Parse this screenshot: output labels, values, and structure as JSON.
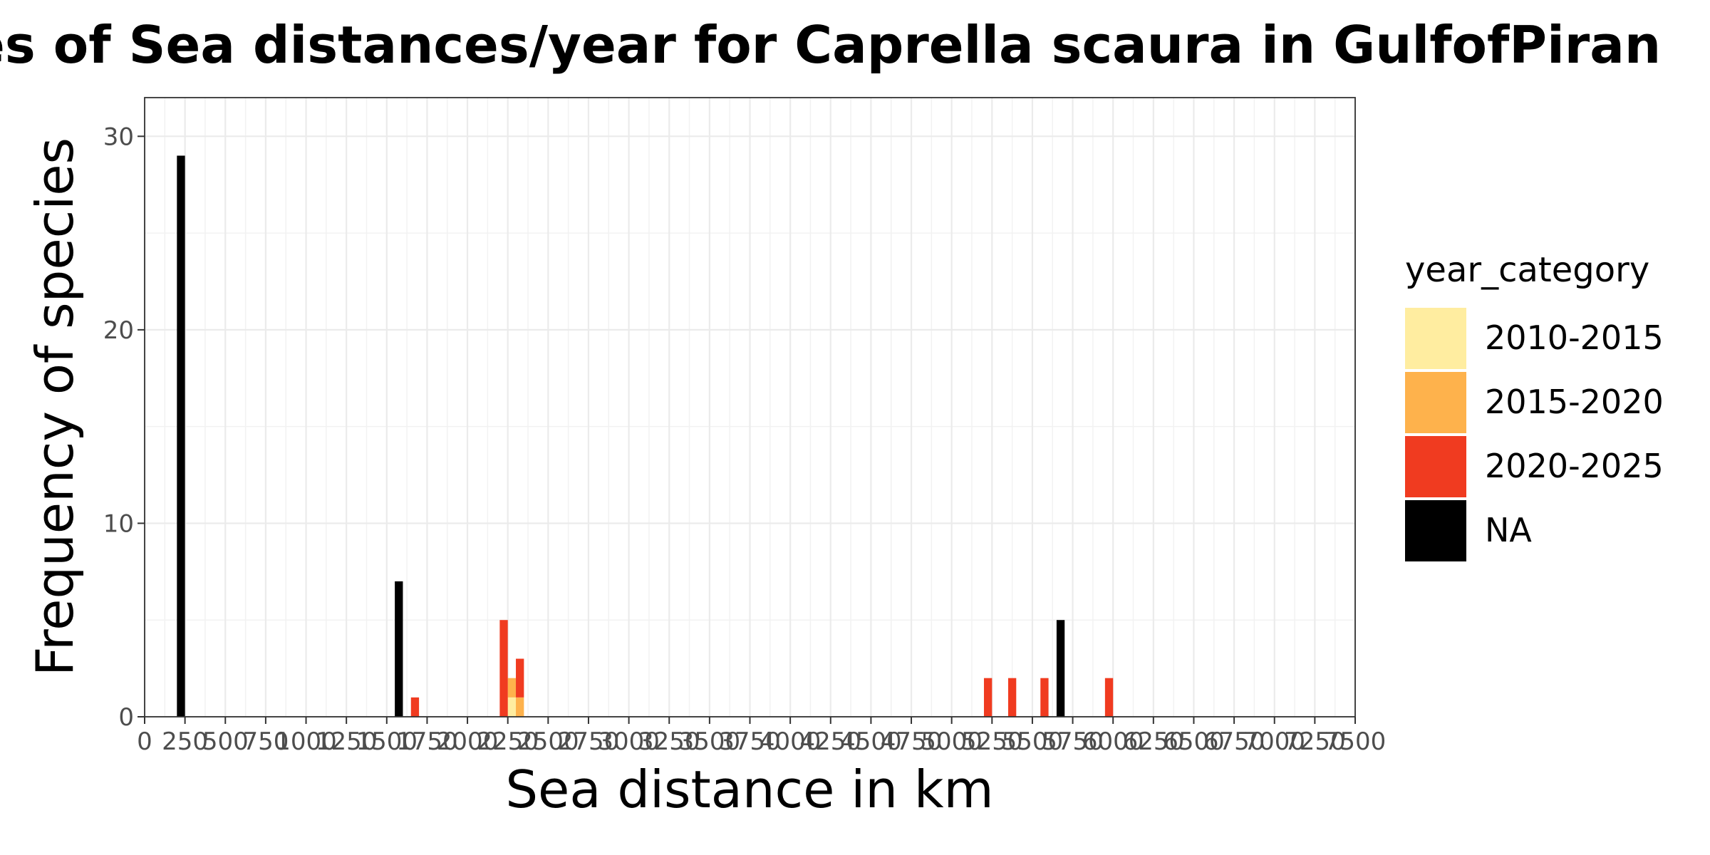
{
  "chart_data": {
    "type": "bar",
    "stacked": true,
    "title": "Frequencies of Sea distances/year for Caprella scaura in GulfofPiran",
    "xlabel": "Sea distance in km",
    "ylabel": "Frequency of species",
    "xlim": [
      0,
      7500
    ],
    "ylim": [
      0,
      32
    ],
    "bin_width": 50,
    "x_ticks": [
      0,
      250,
      500,
      750,
      1000,
      1250,
      1500,
      1750,
      2000,
      2250,
      2500,
      2750,
      3000,
      3250,
      3500,
      3750,
      4000,
      4250,
      4500,
      4750,
      5000,
      5250,
      5500,
      5750,
      6000,
      6250,
      6500,
      6750,
      7000,
      7250,
      7500
    ],
    "x_tick_labels": [
      "0",
      "250",
      "500",
      "750",
      "1000",
      "1250",
      "1500",
      "1750",
      "2000",
      "2250",
      "2500",
      "2750",
      "3000",
      "3250",
      "3500",
      "3750",
      "4000",
      "4250",
      "4500",
      "4750",
      "5000",
      "5250",
      "5500",
      "5750",
      "6000",
      "6250",
      "6500",
      "6750",
      "7000",
      "7250",
      "7500"
    ],
    "y_ticks": [
      0,
      10,
      20,
      30
    ],
    "y_tick_labels": [
      "0",
      "10",
      "20",
      "30"
    ],
    "grid": true,
    "legend": {
      "title": "year_category",
      "placement": "right",
      "entries": [
        {
          "name": "2010-2015",
          "color": "#FFEDA0"
        },
        {
          "name": "2015-2020",
          "color": "#FEB24C"
        },
        {
          "name": "2020-2025",
          "color": "#F03B20"
        },
        {
          "name": "NA",
          "color": "#000000"
        }
      ]
    },
    "series": [
      {
        "name": "2010-2015",
        "color": "#FFEDA0",
        "points": [
          {
            "x": 2275,
            "y": 1
          }
        ]
      },
      {
        "name": "2015-2020",
        "color": "#FEB24C",
        "points": [
          {
            "x": 2275,
            "y": 1
          },
          {
            "x": 2325,
            "y": 1
          }
        ]
      },
      {
        "name": "2020-2025",
        "color": "#F03B20",
        "points": [
          {
            "x": 1675,
            "y": 1
          },
          {
            "x": 2225,
            "y": 5
          },
          {
            "x": 2325,
            "y": 2
          },
          {
            "x": 5225,
            "y": 2
          },
          {
            "x": 5375,
            "y": 2
          },
          {
            "x": 5575,
            "y": 2
          },
          {
            "x": 5975,
            "y": 2
          }
        ]
      },
      {
        "name": "NA",
        "color": "#000000",
        "points": [
          {
            "x": 225,
            "y": 29
          },
          {
            "x": 1575,
            "y": 7
          },
          {
            "x": 5675,
            "y": 5
          }
        ]
      }
    ]
  }
}
